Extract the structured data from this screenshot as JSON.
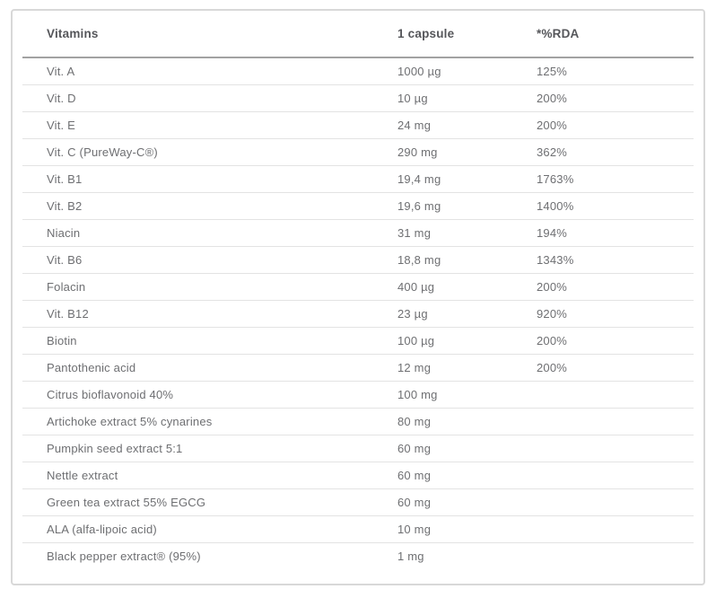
{
  "colors": {
    "header_text": "#55565a",
    "body_text": "#6e6f72",
    "outer_border": "#d8d8d8",
    "header_rule": "#a2a2a2",
    "row_separator": "#e3e3e3"
  },
  "table": {
    "columns": [
      "Vitamins",
      "1 capsule",
      "*%RDA"
    ],
    "rows": [
      {
        "name": "Vit. A",
        "amount": "1000 µg",
        "rda": "125%"
      },
      {
        "name": "Vit. D",
        "amount": "10 µg",
        "rda": "200%"
      },
      {
        "name": "Vit. E",
        "amount": "24 mg",
        "rda": "200%"
      },
      {
        "name": "Vit. C (PureWay-C®)",
        "amount": "290 mg",
        "rda": "362%"
      },
      {
        "name": "Vit. B1",
        "amount": "19,4 mg",
        "rda": "1763%"
      },
      {
        "name": "Vit. B2",
        "amount": "19,6 mg",
        "rda": "1400%"
      },
      {
        "name": "Niacin",
        "amount": "31 mg",
        "rda": "194%"
      },
      {
        "name": "Vit. B6",
        "amount": "18,8 mg",
        "rda": "1343%"
      },
      {
        "name": "Folacin",
        "amount": "400 µg",
        "rda": "200%"
      },
      {
        "name": "Vit. B12",
        "amount": "23 µg",
        "rda": "920%"
      },
      {
        "name": "Biotin",
        "amount": "100 µg",
        "rda": "200%"
      },
      {
        "name": "Pantothenic acid",
        "amount": "12 mg",
        "rda": "200%"
      },
      {
        "name": "Citrus bioflavonoid 40%",
        "amount": "100 mg",
        "rda": ""
      },
      {
        "name": "Artichoke extract 5% cynarines",
        "amount": "80 mg",
        "rda": ""
      },
      {
        "name": "Pumpkin seed extract 5:1",
        "amount": "60 mg",
        "rda": ""
      },
      {
        "name": "Nettle extract",
        "amount": "60 mg",
        "rda": ""
      },
      {
        "name": "Green tea extract 55% EGCG",
        "amount": "60 mg",
        "rda": ""
      },
      {
        "name": "ALA (alfa-lipoic acid)",
        "amount": "10 mg",
        "rda": ""
      },
      {
        "name": "Black pepper extract® (95%)",
        "amount": "1 mg",
        "rda": ""
      }
    ]
  }
}
